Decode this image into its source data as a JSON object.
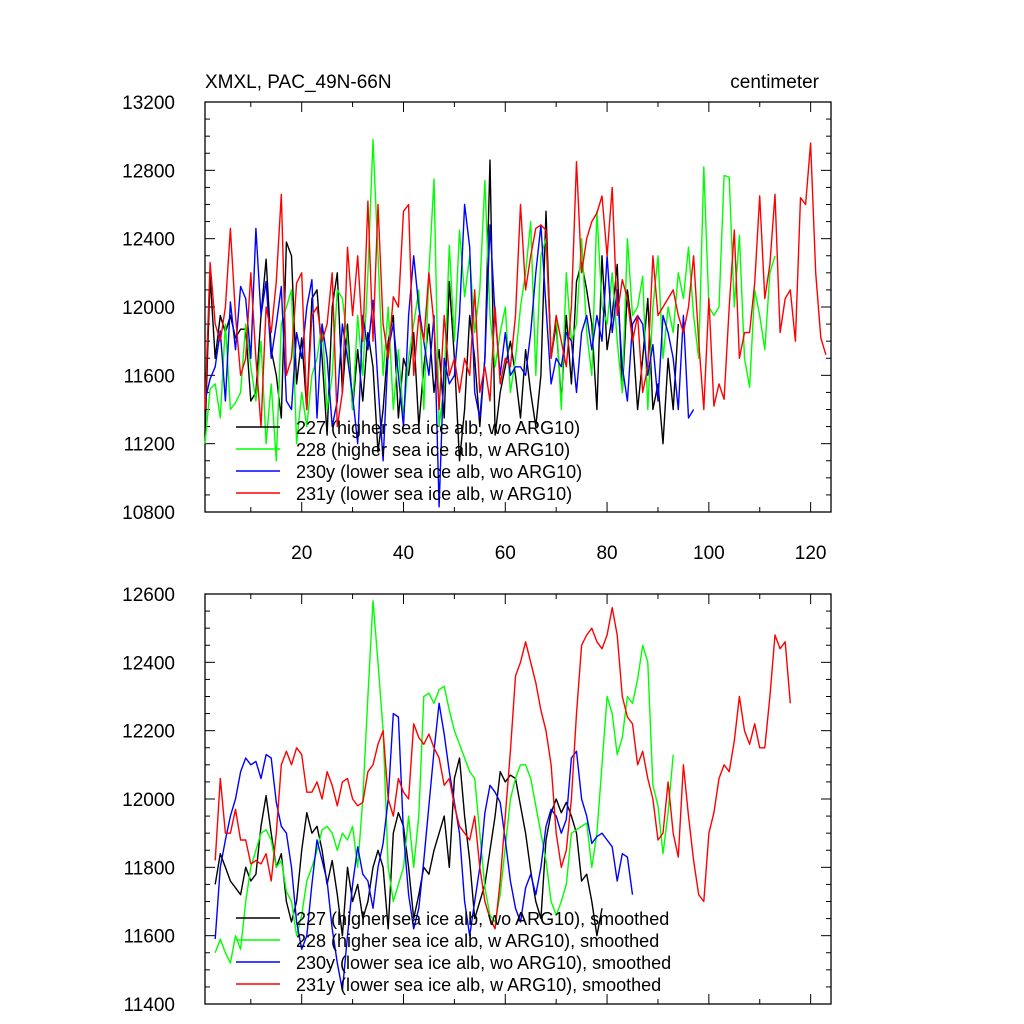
{
  "chart_data": [
    {
      "type": "line",
      "title": "XMXL, PAC_49N-66N",
      "units": "centimeter",
      "xlim": [
        1,
        124
      ],
      "ylim": [
        10800,
        13200
      ],
      "xticks": [
        20,
        40,
        60,
        80,
        100,
        120
      ],
      "yticks": [
        10800,
        11200,
        11600,
        12000,
        12400,
        12800,
        13200
      ],
      "xtick_labels": [
        "20",
        "40",
        "60",
        "80",
        "100",
        "120"
      ],
      "ytick_labels": [
        "10800",
        "11200",
        "11600",
        "12000",
        "12400",
        "12800",
        "13200"
      ],
      "legend_position": "bottom-left",
      "series": [
        {
          "name": "227 (higher sea ice alb, wo ARG10)",
          "color": "#000000",
          "x_start": 1,
          "values": [
            11250,
            12180,
            11700,
            11950,
            11850,
            11950,
            11820,
            11870,
            11870,
            11450,
            11500,
            11950,
            12280,
            11750,
            11600,
            11350,
            12380,
            12300,
            11550,
            11820,
            11400,
            12050,
            12100,
            11700,
            11250,
            12000,
            12200,
            11500,
            11900,
            11400,
            11750,
            11450,
            11850,
            11650,
            11150,
            11400,
            11800,
            11950,
            11350,
            11700,
            11600,
            11850,
            11300,
            11650,
            11900,
            11500,
            11750,
            11350,
            12150,
            11700,
            11100,
            11400,
            11950,
            11700,
            11300,
            11700,
            12860,
            11250,
            11500,
            11650,
            11800,
            11600,
            11350,
            11750,
            11500,
            11300,
            11600,
            12560,
            11700,
            11900,
            11450,
            11950,
            11550,
            12150,
            12260,
            12100,
            11900,
            11400,
            12300,
            11750,
            11950,
            12250,
            11500,
            12100,
            11850,
            11400,
            11700,
            12050,
            11400,
            11550,
            11200,
            11700,
            11400,
            11900
          ]
        },
        {
          "name": "228 (higher sea ice alb, w ARG10)",
          "color": "#00ff00",
          "x_start": 1,
          "values": [
            11200,
            11520,
            11550,
            11350,
            11900,
            11400,
            11440,
            11500,
            11900,
            11650,
            11450,
            11800,
            11200,
            11550,
            11100,
            11900,
            12000,
            12100,
            11200,
            11500,
            11300,
            11600,
            11700,
            11900,
            11400,
            11600,
            12100,
            12050,
            11800,
            11400,
            11950,
            11600,
            12200,
            12980,
            12300,
            11600,
            12000,
            11400,
            11750,
            11350,
            11700,
            11900,
            12100,
            11400,
            12200,
            12750,
            11300,
            11550,
            12360,
            11800,
            12450,
            12060,
            12300,
            11850,
            12100,
            12740,
            11950,
            11650,
            11850,
            12000,
            11500,
            11700,
            12000,
            12200,
            12500,
            11600,
            12300,
            12400,
            11700,
            11950,
            11400,
            12200,
            11800,
            11900,
            12400,
            11850,
            11600,
            12560,
            12000,
            11900,
            12200,
            11800,
            11500,
            12400,
            11950,
            12000,
            12180,
            11400,
            12000,
            12300,
            11700,
            12000,
            11850,
            12200,
            12050,
            12350,
            11950,
            11700,
            12820,
            12000,
            11950,
            12000,
            12770,
            12760,
            12000,
            12420,
            11700,
            11530,
            12100,
            11950,
            11750,
            12200,
            12300
          ]
        },
        {
          "name": "230y (lower sea ice alb, wo ARG10)",
          "color": "#0000ff",
          "x_start": 1,
          "values": [
            11450,
            11580,
            11650,
            11860,
            11450,
            12030,
            11750,
            12120,
            12050,
            11700,
            12460,
            11950,
            12150,
            11700,
            11900,
            12120,
            11450,
            11400,
            11850,
            11700,
            12000,
            12160,
            11350,
            11900,
            11700,
            11300,
            11450,
            11900,
            11700,
            11480,
            11200,
            11950,
            11750,
            12040,
            11550,
            11100,
            11750,
            11900,
            11600,
            11300,
            11950,
            12300,
            12000,
            11800,
            11600,
            11950,
            10830,
            11700,
            11550,
            11600,
            11950,
            12600,
            12350,
            11500,
            11350,
            11700,
            12480,
            11950,
            11600,
            11850,
            11600,
            11650,
            11650,
            11600,
            11850,
            12200,
            12480,
            12000,
            11550,
            11700,
            11650,
            11850,
            11800,
            11500,
            11850,
            11950,
            11750,
            11950,
            11800,
            12300,
            11850,
            12100,
            11650,
            11450,
            11900,
            11950,
            11900,
            11600,
            11780,
            11450,
            11950,
            11850,
            11700,
            11400,
            11950,
            11350,
            11400
          ]
        },
        {
          "name": "231y (lower sea ice alb, w ARG10)",
          "color": "#ff0000",
          "x_start": 1,
          "values": [
            11400,
            12260,
            11900,
            11800,
            12000,
            12460,
            11950,
            11600,
            11700,
            12200,
            11700,
            11300,
            12000,
            11850,
            12150,
            12660,
            11600,
            11700,
            12140,
            12200,
            11400,
            11950,
            12000,
            11800,
            11900,
            12200,
            11300,
            11500,
            12350,
            11950,
            12300,
            11800,
            12620,
            11800,
            12600,
            11900,
            11700,
            12060,
            12000,
            12560,
            12600,
            11600,
            11950,
            11800,
            12200,
            11900,
            11400,
            11950,
            11600,
            11700,
            11500,
            11700,
            11600,
            12100,
            11500,
            11650,
            11450,
            12000,
            11550,
            11700,
            11650,
            11950,
            12600,
            12100,
            12300,
            12460,
            12480,
            12450,
            11700,
            11950,
            11800,
            11650,
            12000,
            12850,
            12200,
            12400,
            12500,
            12550,
            12650,
            12300,
            12700,
            11950,
            12160,
            12050,
            11800,
            11950,
            11500,
            11650,
            12300,
            11950,
            12000,
            12050,
            12100,
            11950,
            11850,
            12000,
            12300,
            11800,
            11400,
            12050,
            11420,
            11550,
            11460,
            12000,
            12450,
            11700,
            11850,
            11850,
            12140,
            12650,
            12050,
            12250,
            12660,
            11850,
            12050,
            12100,
            11800,
            12640,
            12600,
            12960,
            12200,
            11820,
            11720
          ]
        }
      ]
    },
    {
      "type": "line",
      "xlim": [
        1,
        124
      ],
      "ylim": [
        11400,
        12600
      ],
      "xticks": [
        20,
        40,
        60,
        80,
        100,
        120
      ],
      "yticks": [
        11400,
        11600,
        11800,
        12000,
        12200,
        12400,
        12600
      ],
      "ytick_labels": [
        "11400",
        "11600",
        "11800",
        "12000",
        "12200",
        "12400",
        "12600"
      ],
      "legend_position": "bottom-left",
      "series": [
        {
          "name": "227 (higher sea ice alb, wo ARG10), smoothed",
          "color": "#000000",
          "x_start": 3,
          "values": [
            11750,
            11840,
            11800,
            11760,
            11740,
            11720,
            11800,
            11760,
            11780,
            11920,
            12010,
            11900,
            11800,
            11840,
            11700,
            11640,
            11700,
            11850,
            11960,
            11900,
            11920,
            11850,
            11750,
            11820,
            11720,
            11600,
            11800,
            11700,
            11750,
            11650,
            11700,
            11800,
            11850,
            11800,
            11620,
            11900,
            11960,
            11920,
            11800,
            11650,
            11720,
            11800,
            11780,
            11850,
            11900,
            11950,
            11800,
            12060,
            12120,
            11950,
            11820,
            11650,
            11700,
            11750,
            11850,
            11950,
            12080,
            12050,
            12070,
            12060,
            11980,
            11900,
            11790,
            11700,
            11650,
            11880,
            11960,
            12000,
            11960,
            11990,
            11950,
            11900,
            11760,
            11780,
            11700,
            11600,
            11680
          ]
        },
        {
          "name": "228 (higher sea ice alb, w ARG10), smoothed",
          "color": "#00ff00",
          "x_start": 3,
          "values": [
            11550,
            11590,
            11550,
            11520,
            11600,
            11560,
            11700,
            11800,
            11850,
            11900,
            11910,
            11880,
            11800,
            11820,
            11730,
            11700,
            11600,
            11660,
            11760,
            11800,
            11850,
            11910,
            11920,
            11900,
            11850,
            11900,
            11880,
            11920,
            11800,
            12000,
            12300,
            12580,
            12400,
            12200,
            11800,
            11700,
            11750,
            11800,
            11950,
            11800,
            11950,
            12300,
            12310,
            12280,
            12320,
            12330,
            12260,
            12200,
            12160,
            12120,
            12080,
            12060,
            11900,
            11740,
            11660,
            11640,
            11720,
            11860,
            12000,
            12060,
            12100,
            12100,
            12060,
            11980,
            11900,
            11820,
            11700,
            11660,
            11700,
            11750,
            11900,
            11910,
            11920,
            11930,
            11800,
            11900,
            12100,
            12300,
            12250,
            12130,
            12180,
            12300,
            12280,
            12350,
            12450,
            12400,
            12040,
            11980,
            11840,
            11960,
            12130
          ]
        },
        {
          "name": "230y (lower sea ice alb, wo ARG10), smoothed",
          "color": "#0000ff",
          "x_start": 3,
          "values": [
            11590,
            11800,
            11880,
            11950,
            12000,
            12080,
            12120,
            12100,
            12110,
            12060,
            12130,
            12120,
            11990,
            11920,
            11900,
            11800,
            11640,
            11560,
            11600,
            11750,
            11880,
            11820,
            11760,
            11620,
            11520,
            11440,
            11600,
            11750,
            11860,
            11780,
            11760,
            11680,
            11800,
            11870,
            12000,
            12250,
            12240,
            11900,
            11720,
            11620,
            11680,
            11820,
            11980,
            12140,
            12280,
            12190,
            12080,
            11990,
            11900,
            11700,
            11600,
            11700,
            11800,
            11960,
            12040,
            12020,
            11990,
            11880,
            11760,
            11680,
            11640,
            11740,
            11780,
            11720,
            11800,
            11920,
            11970,
            11950,
            11900,
            11940,
            12120,
            12140,
            12000,
            11950,
            11870,
            11890,
            11900,
            11880,
            11860,
            11760,
            11840,
            11830,
            11720
          ]
        },
        {
          "name": "231y (lower sea ice alb, w ARG10), smoothed",
          "color": "#ff0000",
          "x_start": 3,
          "values": [
            11820,
            12060,
            11900,
            11900,
            11970,
            11880,
            11880,
            11810,
            11820,
            11810,
            11840,
            11760,
            11900,
            12100,
            12140,
            12100,
            12150,
            12130,
            12020,
            12020,
            12050,
            12000,
            12080,
            12040,
            11980,
            12050,
            12060,
            12000,
            11980,
            11990,
            12080,
            12100,
            12160,
            12200,
            12000,
            11950,
            12060,
            12020,
            12000,
            12220,
            12180,
            12160,
            12190,
            12150,
            12120,
            12040,
            12060,
            11980,
            11920,
            11900,
            11880,
            11950,
            11800,
            11700,
            11650,
            11620,
            11760,
            11950,
            12140,
            12360,
            12400,
            12460,
            12400,
            12340,
            12260,
            12200,
            12100,
            11900,
            11800,
            11850,
            12000,
            12250,
            12450,
            12480,
            12500,
            12460,
            12440,
            12480,
            12560,
            12480,
            12300,
            12240,
            12220,
            12100,
            12140,
            12060,
            12000,
            11880,
            11900,
            12050,
            11900,
            11830,
            12100,
            11950,
            11820,
            11720,
            11700,
            11900,
            11960,
            12060,
            12100,
            12080,
            12170,
            12300,
            12200,
            12160,
            12220,
            12150,
            12150,
            12300,
            12480,
            12440,
            12460,
            12280
          ]
        }
      ]
    }
  ]
}
